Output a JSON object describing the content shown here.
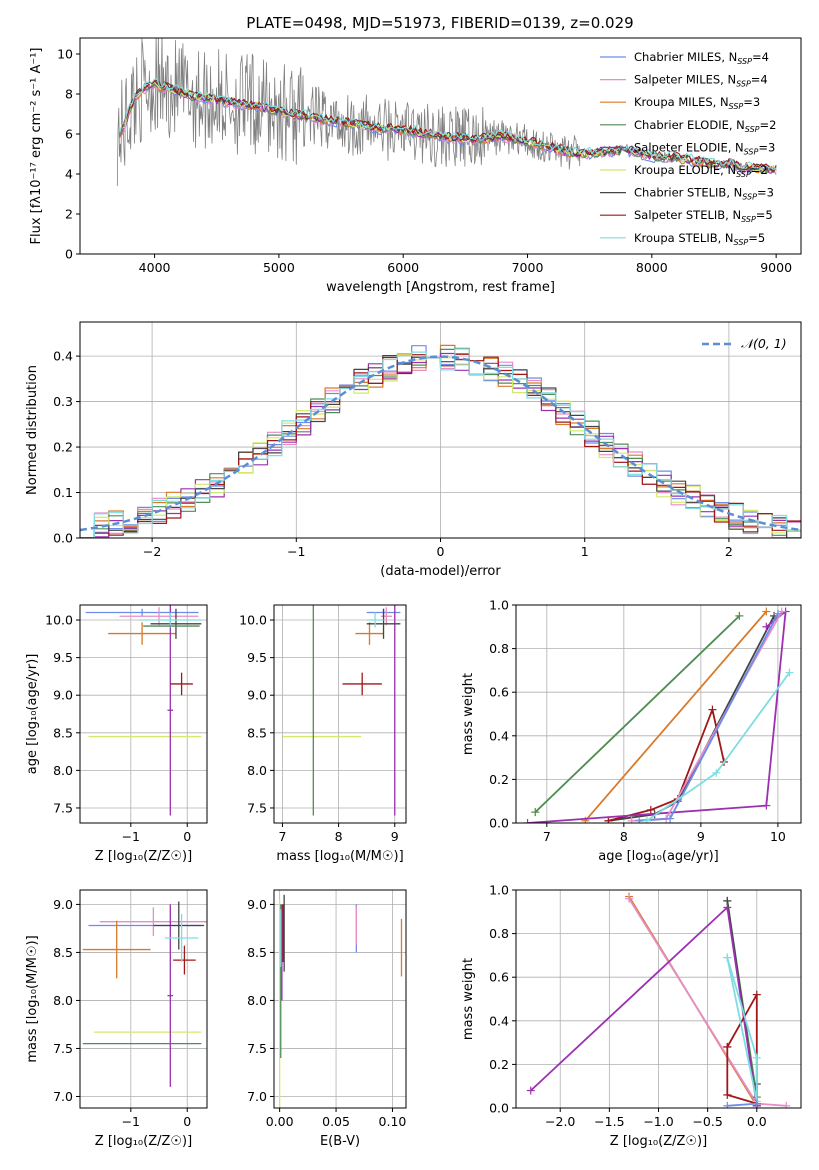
{
  "figure": {
    "title": "PLATE=0498, MJD=51973, FIBERID=0139, z=0.029"
  },
  "colors": {
    "chabrier_miles": "#6b8de8",
    "salpeter_miles": "#e58ec9",
    "kroupa_miles": "#d9792a",
    "chabrier_elodie": "#4f8c5a",
    "salpeter_elodie": "#9b30b0",
    "kroupa_elodie": "#d4e86a",
    "chabrier_stelib": "#444444",
    "salpeter_stelib": "#a01818",
    "kroupa_stelib": "#7fdde0",
    "observed": "#808080",
    "normal": "#5b8ed6",
    "grid": "#b0b0b0"
  },
  "chart_data": [
    {
      "id": "spectrum",
      "type": "line",
      "title": "PLATE=0498, MJD=51973, FIBERID=0139, z=0.029",
      "xlabel": "wavelength [Angstrom, rest frame]",
      "ylabel": "Flux [fλ10⁻¹⁷ erg cm⁻² s⁻¹ A⁻¹]",
      "xlim": [
        3400,
        9200
      ],
      "ylim": [
        0,
        10.8
      ],
      "xticks": [
        4000,
        5000,
        6000,
        7000,
        8000,
        9000
      ],
      "yticks": [
        0,
        2,
        4,
        6,
        8,
        10
      ],
      "grid": false,
      "legend_position": "top-right",
      "legend": [
        {
          "label": "Chabrier MILES, N",
          "sub": "SSP",
          "suffix": "=4",
          "color": "#6b8de8"
        },
        {
          "label": "Salpeter MILES, N",
          "sub": "SSP",
          "suffix": "=4",
          "color": "#e58ec9"
        },
        {
          "label": "Kroupa MILES, N",
          "sub": "SSP",
          "suffix": "=3",
          "color": "#d9792a"
        },
        {
          "label": "Chabrier ELODIE, N",
          "sub": "SSP",
          "suffix": "=2",
          "color": "#4f8c5a"
        },
        {
          "label": "Salpeter ELODIE, N",
          "sub": "SSP",
          "suffix": "=3",
          "color": "#9b30b0"
        },
        {
          "label": "Kroupa ELODIE, N",
          "sub": "SSP",
          "suffix": "=2",
          "color": "#d4e86a"
        },
        {
          "label": "Chabrier STELIB, N",
          "sub": "SSP",
          "suffix": "=3",
          "color": "#444444"
        },
        {
          "label": "Salpeter STELIB, N",
          "sub": "SSP",
          "suffix": "=5",
          "color": "#a01818"
        },
        {
          "label": "Kroupa STELIB, N",
          "sub": "SSP",
          "suffix": "=5",
          "color": "#7fdde0"
        }
      ],
      "model_continuum": {
        "x": [
          3700,
          3750,
          3800,
          3850,
          3900,
          3950,
          4000,
          4100,
          4200,
          4300,
          4400,
          4500,
          4600,
          4700,
          4800,
          4900,
          5000,
          5200,
          5400,
          5600,
          5800,
          6000,
          6200,
          6400,
          6600,
          6800,
          7000,
          7200,
          7400,
          7600,
          7800,
          8000,
          8200,
          8400,
          8600,
          8800,
          9000
        ],
        "y": [
          6.0,
          6.3,
          7.2,
          7.9,
          8.2,
          8.4,
          8.5,
          8.3,
          8.1,
          7.9,
          7.8,
          7.7,
          7.6,
          7.5,
          7.4,
          7.3,
          7.1,
          6.9,
          6.7,
          6.5,
          6.3,
          6.2,
          6.0,
          5.8,
          5.7,
          5.9,
          5.6,
          5.3,
          5.0,
          5.1,
          5.2,
          4.9,
          4.8,
          4.6,
          4.5,
          4.3,
          4.2
        ]
      }
    },
    {
      "id": "residuals",
      "type": "line",
      "xlabel": "(data-model)/error",
      "ylabel": "Normed distribution",
      "xlim": [
        -2.5,
        2.5
      ],
      "ylim": [
        0,
        0.475
      ],
      "xticks": [
        -2,
        -1,
        0,
        1,
        2
      ],
      "yticks": [
        0.0,
        0.1,
        0.2,
        0.3,
        0.4
      ],
      "grid": true,
      "legend_position": "top-right",
      "legend": [
        {
          "label": "𝒩(0, 1)",
          "color": "#5b8ed6",
          "style": "dashed"
        }
      ]
    },
    {
      "id": "age_vs_Z",
      "type": "scatter",
      "xlabel": "Z [log₁₀(Z/Z☉)]",
      "ylabel": "age  [log₁₀(age/yr)]",
      "xlim": [
        -1.9,
        0.35
      ],
      "ylim": [
        7.3,
        10.2
      ],
      "xticks": [
        -1,
        0
      ],
      "yticks": [
        7.5,
        8.0,
        8.5,
        9.0,
        9.5,
        10.0
      ],
      "grid": true,
      "points": [
        {
          "x": -0.8,
          "xerr": 1.0,
          "y": 10.1,
          "yerr": 0.05,
          "color": "#6b8de8"
        },
        {
          "x": -0.5,
          "xerr": 0.7,
          "y": 10.05,
          "yerr": 0.12,
          "color": "#e58ec9"
        },
        {
          "x": -0.8,
          "xerr": 0.6,
          "y": 9.82,
          "yerr": 0.15,
          "color": "#d9792a"
        },
        {
          "x": -0.75,
          "xerr": 1.0,
          "y": 8.45,
          "yerr": 0.0,
          "color": "#d4e86a"
        },
        {
          "x": -0.3,
          "xerr": 0.05,
          "y": 8.8,
          "yerr": 1.4,
          "color": "#9b30b0"
        },
        {
          "x": -0.2,
          "xerr": 0.45,
          "y": 9.95,
          "yerr": 0.2,
          "color": "#444444"
        },
        {
          "x": -0.1,
          "xerr": 0.2,
          "y": 9.15,
          "yerr": 0.15,
          "color": "#a01818"
        },
        {
          "x": -0.3,
          "xerr": 0.55,
          "y": 10.0,
          "yerr": 0.1,
          "color": "#7fdde0"
        },
        {
          "x": -0.28,
          "xerr": 0.5,
          "y": 9.92,
          "yerr": 0.0,
          "color": "#4f8c5a"
        }
      ]
    },
    {
      "id": "age_vs_mass",
      "type": "scatter",
      "xlabel": "mass [log₁₀(M/M☉)]",
      "ylabel": "",
      "xlim": [
        6.85,
        9.2
      ],
      "ylim": [
        7.3,
        10.2
      ],
      "xticks": [
        7,
        8,
        9
      ],
      "yticks": [
        7.5,
        8.0,
        8.5,
        9.0,
        9.5,
        10.0
      ],
      "grid": true,
      "points": [
        {
          "x": 8.8,
          "xerr": 0.3,
          "y": 10.1,
          "yerr": 0.05,
          "color": "#6b8de8"
        },
        {
          "x": 8.85,
          "xerr": 0.1,
          "y": 10.05,
          "yerr": 0.12,
          "color": "#e58ec9"
        },
        {
          "x": 8.55,
          "xerr": 0.25,
          "y": 9.82,
          "yerr": 0.15,
          "color": "#d9792a"
        },
        {
          "x": 7.7,
          "xerr": 0.7,
          "y": 8.45,
          "yerr": 0.0,
          "color": "#d4e86a"
        },
        {
          "x": 9.0,
          "xerr": 0.0,
          "y": 8.8,
          "yerr": 1.4,
          "color": "#9b30b0"
        },
        {
          "x": 8.8,
          "xerr": 0.3,
          "y": 9.95,
          "yerr": 0.2,
          "color": "#444444"
        },
        {
          "x": 8.42,
          "xerr": 0.35,
          "y": 9.15,
          "yerr": 0.15,
          "color": "#a01818"
        },
        {
          "x": 8.65,
          "xerr": 0.15,
          "y": 10.0,
          "yerr": 0.1,
          "color": "#7fdde0"
        },
        {
          "x": 7.55,
          "xerr": 0.0,
          "y": 8.8,
          "yerr": 1.4,
          "color": "#4f8c5a"
        }
      ]
    },
    {
      "id": "weight_vs_age",
      "type": "line",
      "xlabel": "age  [log₁₀(age/yr)]",
      "ylabel": "mass weight",
      "xlim": [
        6.6,
        10.3
      ],
      "ylim": [
        0,
        1.0
      ],
      "xticks": [
        7,
        8,
        9,
        10
      ],
      "yticks": [
        0.0,
        0.2,
        0.4,
        0.6,
        0.8,
        1.0
      ],
      "grid": true,
      "series": [
        {
          "color": "#d4e86a",
          "x": [
            6.85,
            9.5
          ],
          "y": [
            0.05,
            0.95
          ]
        },
        {
          "color": "#4f8c5a",
          "x": [
            6.85,
            9.5
          ],
          "y": [
            0.05,
            0.95
          ]
        },
        {
          "color": "#d9792a",
          "x": [
            7.5,
            9.85
          ],
          "y": [
            0.01,
            0.97
          ]
        },
        {
          "color": "#444444",
          "x": [
            7.8,
            8.4,
            8.7,
            9.95
          ],
          "y": [
            0.01,
            0.04,
            0.1,
            0.95
          ]
        },
        {
          "color": "#a01818",
          "x": [
            7.8,
            8.35,
            8.7,
            9.15,
            9.3
          ],
          "y": [
            0.01,
            0.06,
            0.11,
            0.52,
            0.28
          ]
        },
        {
          "color": "#9b30b0",
          "x": [
            6.75,
            9.85,
            10.1,
            9.85
          ],
          "y": [
            0.0,
            0.08,
            0.97,
            0.9
          ]
        },
        {
          "color": "#e58ec9",
          "x": [
            8.1,
            8.55,
            10.05
          ],
          "y": [
            0.01,
            0.02,
            0.97
          ]
        },
        {
          "color": "#6b8de8",
          "x": [
            8.2,
            8.6,
            10.0
          ],
          "y": [
            0.01,
            0.02,
            0.96
          ]
        },
        {
          "color": "#7fdde0",
          "x": [
            8.3,
            9.2,
            10.15
          ],
          "y": [
            0.01,
            0.23,
            0.69
          ]
        }
      ]
    },
    {
      "id": "mass_vs_Z",
      "type": "scatter",
      "xlabel": "Z [log₁₀(Z/Z☉)]",
      "ylabel": "mass [log₁₀(M/M☉)]",
      "xlim": [
        -1.9,
        0.35
      ],
      "ylim": [
        6.88,
        9.15
      ],
      "xticks": [
        -1,
        0
      ],
      "yticks": [
        7.0,
        7.5,
        8.0,
        8.5,
        9.0
      ],
      "grid": true,
      "points": [
        {
          "x": -0.75,
          "xerr": 1.0,
          "y": 8.78,
          "yerr": 0.0,
          "color": "#6b8de8"
        },
        {
          "x": -0.6,
          "xerr": 0.95,
          "y": 8.82,
          "yerr": 0.15,
          "color": "#e58ec9"
        },
        {
          "x": -1.25,
          "xerr": 0.6,
          "y": 8.53,
          "yerr": 0.3,
          "color": "#d9792a"
        },
        {
          "x": -0.7,
          "xerr": 0.95,
          "y": 7.67,
          "yerr": 0.0,
          "color": "#d4e86a"
        },
        {
          "x": -0.8,
          "xerr": 1.05,
          "y": 7.55,
          "yerr": 0.0,
          "color": "#4f8c5a"
        },
        {
          "x": -0.3,
          "xerr": 0.05,
          "y": 8.05,
          "yerr": 0.95,
          "color": "#9b30b0"
        },
        {
          "x": -0.15,
          "xerr": 0.45,
          "y": 8.78,
          "yerr": 0.25,
          "color": "#444444"
        },
        {
          "x": -0.05,
          "xerr": 0.2,
          "y": 8.42,
          "yerr": 0.15,
          "color": "#a01818"
        },
        {
          "x": -0.1,
          "xerr": 0.3,
          "y": 8.65,
          "yerr": 0.25,
          "color": "#7fdde0"
        }
      ]
    },
    {
      "id": "mass_vs_ebv",
      "type": "scatter",
      "xlabel": "E(B-V)",
      "ylabel": "",
      "xlim": [
        -0.005,
        0.112
      ],
      "ylim": [
        6.88,
        9.15
      ],
      "xticks": [
        0.0,
        0.05,
        0.1
      ],
      "yticks": [
        7.0,
        7.5,
        8.0,
        8.5,
        9.0
      ],
      "grid": true,
      "points": [
        {
          "x": 0.068,
          "xerr": 0.0,
          "y": 8.75,
          "yerr": 0.25,
          "color": "#6b8de8"
        },
        {
          "x": 0.068,
          "xerr": 0.0,
          "y": 8.78,
          "yerr": 0.2,
          "color": "#e58ec9"
        },
        {
          "x": 0.108,
          "xerr": 0.0,
          "y": 8.55,
          "yerr": 0.3,
          "color": "#d9792a"
        },
        {
          "x": 0.0,
          "xerr": 0.0,
          "y": 7.95,
          "yerr": 1.1,
          "color": "#d4e86a"
        },
        {
          "x": 0.001,
          "xerr": 0.0,
          "y": 8.2,
          "yerr": 0.8,
          "color": "#4f8c5a"
        },
        {
          "x": 0.002,
          "xerr": 0.0,
          "y": 8.5,
          "yerr": 0.5,
          "color": "#9b30b0"
        },
        {
          "x": 0.004,
          "xerr": 0.0,
          "y": 8.7,
          "yerr": 0.4,
          "color": "#444444"
        },
        {
          "x": 0.003,
          "xerr": 0.0,
          "y": 8.7,
          "yerr": 0.3,
          "color": "#a01818"
        },
        {
          "x": 0.001,
          "xerr": 0.0,
          "y": 8.65,
          "yerr": 0.3,
          "color": "#7fdde0"
        }
      ]
    },
    {
      "id": "weight_vs_Z",
      "type": "line",
      "xlabel": "Z [log₁₀(Z/Z☉)]",
      "ylabel": "mass weight",
      "xlim": [
        -2.45,
        0.45
      ],
      "ylim": [
        0,
        1.0
      ],
      "xticks": [
        -2.0,
        -1.5,
        -1.0,
        -0.5,
        0.0
      ],
      "yticks": [
        0.0,
        0.2,
        0.4,
        0.6,
        0.8,
        1.0
      ],
      "grid": true,
      "series": [
        {
          "color": "#d9792a",
          "x": [
            -1.3,
            0.0
          ],
          "y": [
            0.97,
            0.01
          ]
        },
        {
          "color": "#e58ec9",
          "x": [
            -1.3,
            0.0,
            0.3
          ],
          "y": [
            0.96,
            0.02,
            0.01
          ]
        },
        {
          "color": "#4f8c5a",
          "x": [
            -0.3,
            0.0
          ],
          "y": [
            0.95,
            0.05
          ]
        },
        {
          "color": "#444444",
          "x": [
            -0.3,
            0.0,
            0.0
          ],
          "y": [
            0.95,
            0.01,
            0.11
          ]
        },
        {
          "color": "#9b30b0",
          "x": [
            -2.3,
            -0.3,
            0.0,
            0.0
          ],
          "y": [
            0.08,
            0.92,
            0.01,
            0.0
          ]
        },
        {
          "color": "#a01818",
          "x": [
            -0.3,
            0.0,
            0.0,
            -0.3,
            -0.3
          ],
          "y": [
            0.28,
            0.52,
            0.02,
            0.06,
            0.28
          ]
        },
        {
          "color": "#7fdde0",
          "x": [
            -0.3,
            0.0,
            0.0,
            -0.3
          ],
          "y": [
            0.69,
            0.23,
            0.03,
            0.69
          ]
        },
        {
          "color": "#6b8de8",
          "x": [
            -0.3,
            0.0
          ],
          "y": [
            0.01,
            0.02
          ]
        }
      ]
    }
  ]
}
